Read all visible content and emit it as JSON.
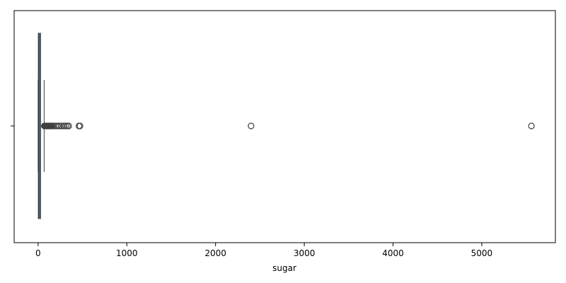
{
  "chart_data": {
    "type": "boxplot",
    "orientation": "horizontal",
    "title": "",
    "xlabel": "sugar",
    "ylabel": "",
    "xlim": [
      -270,
      5830
    ],
    "x_ticks": [
      0,
      1000,
      2000,
      3000,
      4000,
      5000
    ],
    "x_tick_labels": [
      "0",
      "1000",
      "2000",
      "3000",
      "4000",
      "5000"
    ],
    "grid": false,
    "legend": "none",
    "colors": {
      "box": "#3a6f9b",
      "stroke": "#3f3f3f"
    },
    "box": {
      "min": 0,
      "q1": 2,
      "median": 8,
      "q3": 28,
      "max": 68
    },
    "outliers": [
      70,
      75,
      80,
      86,
      92,
      98,
      104,
      110,
      118,
      126,
      134,
      142,
      150,
      165,
      180,
      200,
      220,
      240,
      265,
      290,
      310,
      330,
      345,
      460,
      472,
      2400,
      5560
    ]
  }
}
